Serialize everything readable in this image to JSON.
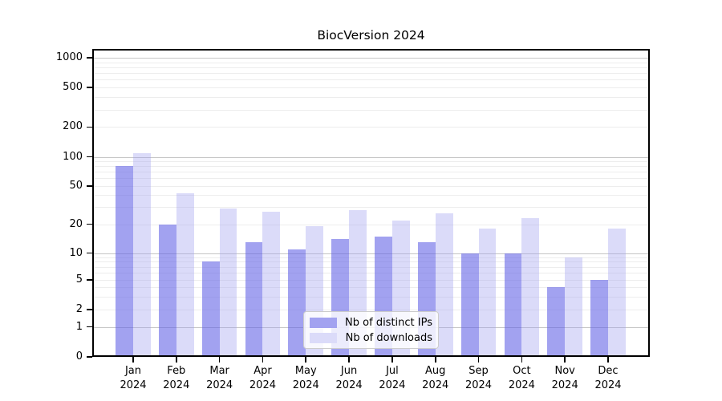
{
  "chart_data": {
    "type": "bar",
    "title": "BiocVersion 2024",
    "xlabel": "",
    "ylabel": "",
    "categories": [
      "Jan",
      "Feb",
      "Mar",
      "Apr",
      "May",
      "Jun",
      "Jul",
      "Aug",
      "Sep",
      "Oct",
      "Nov",
      "Dec"
    ],
    "category_year": "2024",
    "series": [
      {
        "name": "Nb of distinct IPs",
        "values": [
          80,
          20,
          8,
          13,
          11,
          14,
          15,
          13,
          10,
          10,
          4,
          5
        ]
      },
      {
        "name": "Nb of downloads",
        "values": [
          110,
          42,
          29,
          27,
          19,
          28,
          22,
          26,
          18,
          23,
          9,
          18
        ]
      }
    ],
    "y_ticks": [
      0,
      1,
      2,
      5,
      10,
      20,
      50,
      100,
      200,
      500,
      1000
    ],
    "y_scale": "log-like with zero baseline",
    "ylim": [
      0,
      1200
    ],
    "grid": "horizontal major at decades, light log minors",
    "legend_position": "lower center"
  },
  "colors": {
    "bar_ips_fill": "rgba(100,100,230,0.6)",
    "bar_downloads_fill": "rgba(160,160,240,0.38)",
    "legend_swatch_ips": "#a2a2f0",
    "legend_swatch_downloads": "#dbdbf9",
    "grid_major": "#c6c6c6",
    "grid_minor": "#ededed",
    "axis": "#000000",
    "text": "#000000"
  }
}
